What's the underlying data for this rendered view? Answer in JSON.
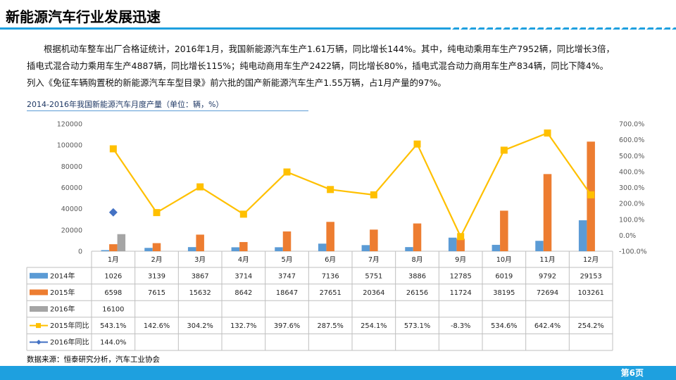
{
  "slide": {
    "title": "新能源汽车行业发展迅速",
    "paragraph1": "根据机动车整车出厂合格证统计，2016年1月，我国新能源汽车生产1.61万辆，同比增长144%。其中，纯电动乘用车生产7952辆，同比增长3倍，",
    "paragraph2": "插电式混合动力乘用车生产4887辆，同比增长115%；纯电动商用车生产2422辆，同比增长80%，插电式混合动力商用车生产834辆，同比下降4%。",
    "paragraph3": "列入《免征车辆购置税的新能源汽车车型目录》前六批的国产新能源汽车生产1.55万辆，占1月产量的97%。",
    "chart_title": "2014-2016年我国新能源汽车月度产量（单位：辆，%）",
    "source": "数据来源：恒泰研究分析，汽车工业协会",
    "page_number": "第6页"
  },
  "colors": {
    "accent": "#1ea0df",
    "s2014": "#5b9bd5",
    "s2015": "#ed7d31",
    "s2016": "#a5a5a5",
    "yoy2015": "#ffc000",
    "yoy2016": "#4472c4"
  },
  "chart_data": {
    "type": "bar",
    "categories": [
      "1月",
      "2月",
      "3月",
      "4月",
      "5月",
      "6月",
      "7月",
      "8月",
      "9月",
      "10月",
      "11月",
      "12月"
    ],
    "y_left_ticks": [
      "0",
      "20000",
      "40000",
      "60000",
      "80000",
      "100000",
      "120000"
    ],
    "y_right_ticks": [
      "-100.0%",
      "0.0%",
      "100.0%",
      "200.0%",
      "300.0%",
      "400.0%",
      "500.0%",
      "600.0%",
      "700.0%"
    ],
    "ylim": [
      0,
      120000
    ],
    "y2lim": [
      -100,
      700
    ],
    "legend": "table-left",
    "series": [
      {
        "name": "2014年",
        "kind": "bar",
        "color": "#5b9bd5",
        "values": [
          1026,
          3139,
          3867,
          3714,
          3747,
          7136,
          5751,
          3886,
          12785,
          6019,
          9792,
          29153
        ],
        "labels": [
          "1026",
          "3139",
          "3867",
          "3714",
          "3747",
          "7136",
          "5751",
          "3886",
          "12785",
          "6019",
          "9792",
          "29153"
        ]
      },
      {
        "name": "2015年",
        "kind": "bar",
        "color": "#ed7d31",
        "values": [
          6598,
          7615,
          15632,
          8642,
          18647,
          27651,
          20364,
          26156,
          11724,
          38195,
          72694,
          103261
        ],
        "labels": [
          "6598",
          "7615",
          "15632",
          "8642",
          "18647",
          "27651",
          "20364",
          "26156",
          "11724",
          "38195",
          "72694",
          "103261"
        ]
      },
      {
        "name": "2016年",
        "kind": "bar",
        "color": "#a5a5a5",
        "values": [
          16100,
          null,
          null,
          null,
          null,
          null,
          null,
          null,
          null,
          null,
          null,
          null
        ],
        "labels": [
          "16100",
          "",
          "",
          "",
          "",
          "",
          "",
          "",
          "",
          "",
          "",
          ""
        ]
      },
      {
        "name": "2015年同比",
        "kind": "line",
        "marker": "square",
        "color": "#ffc000",
        "values": [
          543.1,
          142.6,
          304.2,
          132.7,
          397.6,
          287.5,
          254.1,
          573.1,
          -8.3,
          534.6,
          642.4,
          254.2
        ],
        "labels": [
          "543.1%",
          "142.6%",
          "304.2%",
          "132.7%",
          "397.6%",
          "287.5%",
          "254.1%",
          "573.1%",
          "-8.3%",
          "534.6%",
          "642.4%",
          "254.2%"
        ]
      },
      {
        "name": "2016年同比",
        "kind": "line",
        "marker": "diamond",
        "color": "#4472c4",
        "values": [
          144.0,
          null,
          null,
          null,
          null,
          null,
          null,
          null,
          null,
          null,
          null,
          null
        ],
        "labels": [
          "144.0%",
          "",
          "",
          "",
          "",
          "",
          "",
          "",
          "",
          "",
          "",
          ""
        ]
      }
    ]
  }
}
